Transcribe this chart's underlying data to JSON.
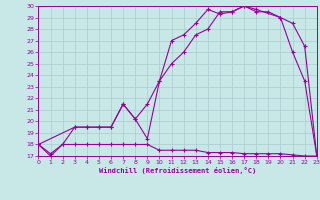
{
  "bg_color": "#c8e8e8",
  "line_color": "#990099",
  "grid_color": "#aacccc",
  "xlabel": "Windchill (Refroidissement éolien,°C)",
  "xlabel_color": "#990099",
  "xmin": 0,
  "xmax": 23,
  "ymin": 17,
  "ymax": 30,
  "yticks": [
    17,
    18,
    19,
    20,
    21,
    22,
    23,
    24,
    25,
    26,
    27,
    28,
    29,
    30
  ],
  "xticks": [
    0,
    1,
    2,
    3,
    4,
    5,
    6,
    7,
    8,
    9,
    10,
    11,
    12,
    13,
    14,
    15,
    16,
    17,
    18,
    19,
    20,
    21,
    22,
    23
  ],
  "curve1_x": [
    0,
    1,
    2,
    3,
    4,
    5,
    6,
    7,
    8,
    9,
    10,
    11,
    12,
    13,
    14,
    15,
    16,
    17,
    18,
    19,
    20,
    21,
    22,
    23
  ],
  "curve1_y": [
    18.0,
    17.0,
    18.0,
    18.0,
    18.0,
    18.0,
    18.0,
    18.0,
    18.0,
    18.0,
    17.5,
    17.5,
    17.5,
    17.5,
    17.3,
    17.3,
    17.3,
    17.2,
    17.2,
    17.2,
    17.2,
    17.1,
    17.0,
    17.0
  ],
  "curve2_x": [
    0,
    1,
    2,
    3,
    4,
    5,
    6,
    7,
    8,
    9,
    10,
    11,
    12,
    13,
    14,
    15,
    16,
    17,
    18,
    19,
    20,
    21,
    22,
    23
  ],
  "curve2_y": [
    18.0,
    17.2,
    18.0,
    19.5,
    19.5,
    19.5,
    19.5,
    21.5,
    20.2,
    18.5,
    23.5,
    25.0,
    26.0,
    27.5,
    28.0,
    29.5,
    29.5,
    30.0,
    29.5,
    29.5,
    29.0,
    26.0,
    23.5,
    17.0
  ],
  "curve3_x": [
    0,
    3,
    4,
    5,
    6,
    7,
    8,
    9,
    10,
    11,
    12,
    13,
    14,
    15,
    16,
    17,
    18,
    20,
    21,
    22,
    23
  ],
  "curve3_y": [
    18.0,
    19.5,
    19.5,
    19.5,
    19.5,
    21.5,
    20.2,
    21.5,
    23.5,
    27.0,
    27.5,
    28.5,
    29.7,
    29.3,
    29.5,
    30.0,
    29.7,
    29.0,
    28.5,
    26.5,
    17.0
  ]
}
